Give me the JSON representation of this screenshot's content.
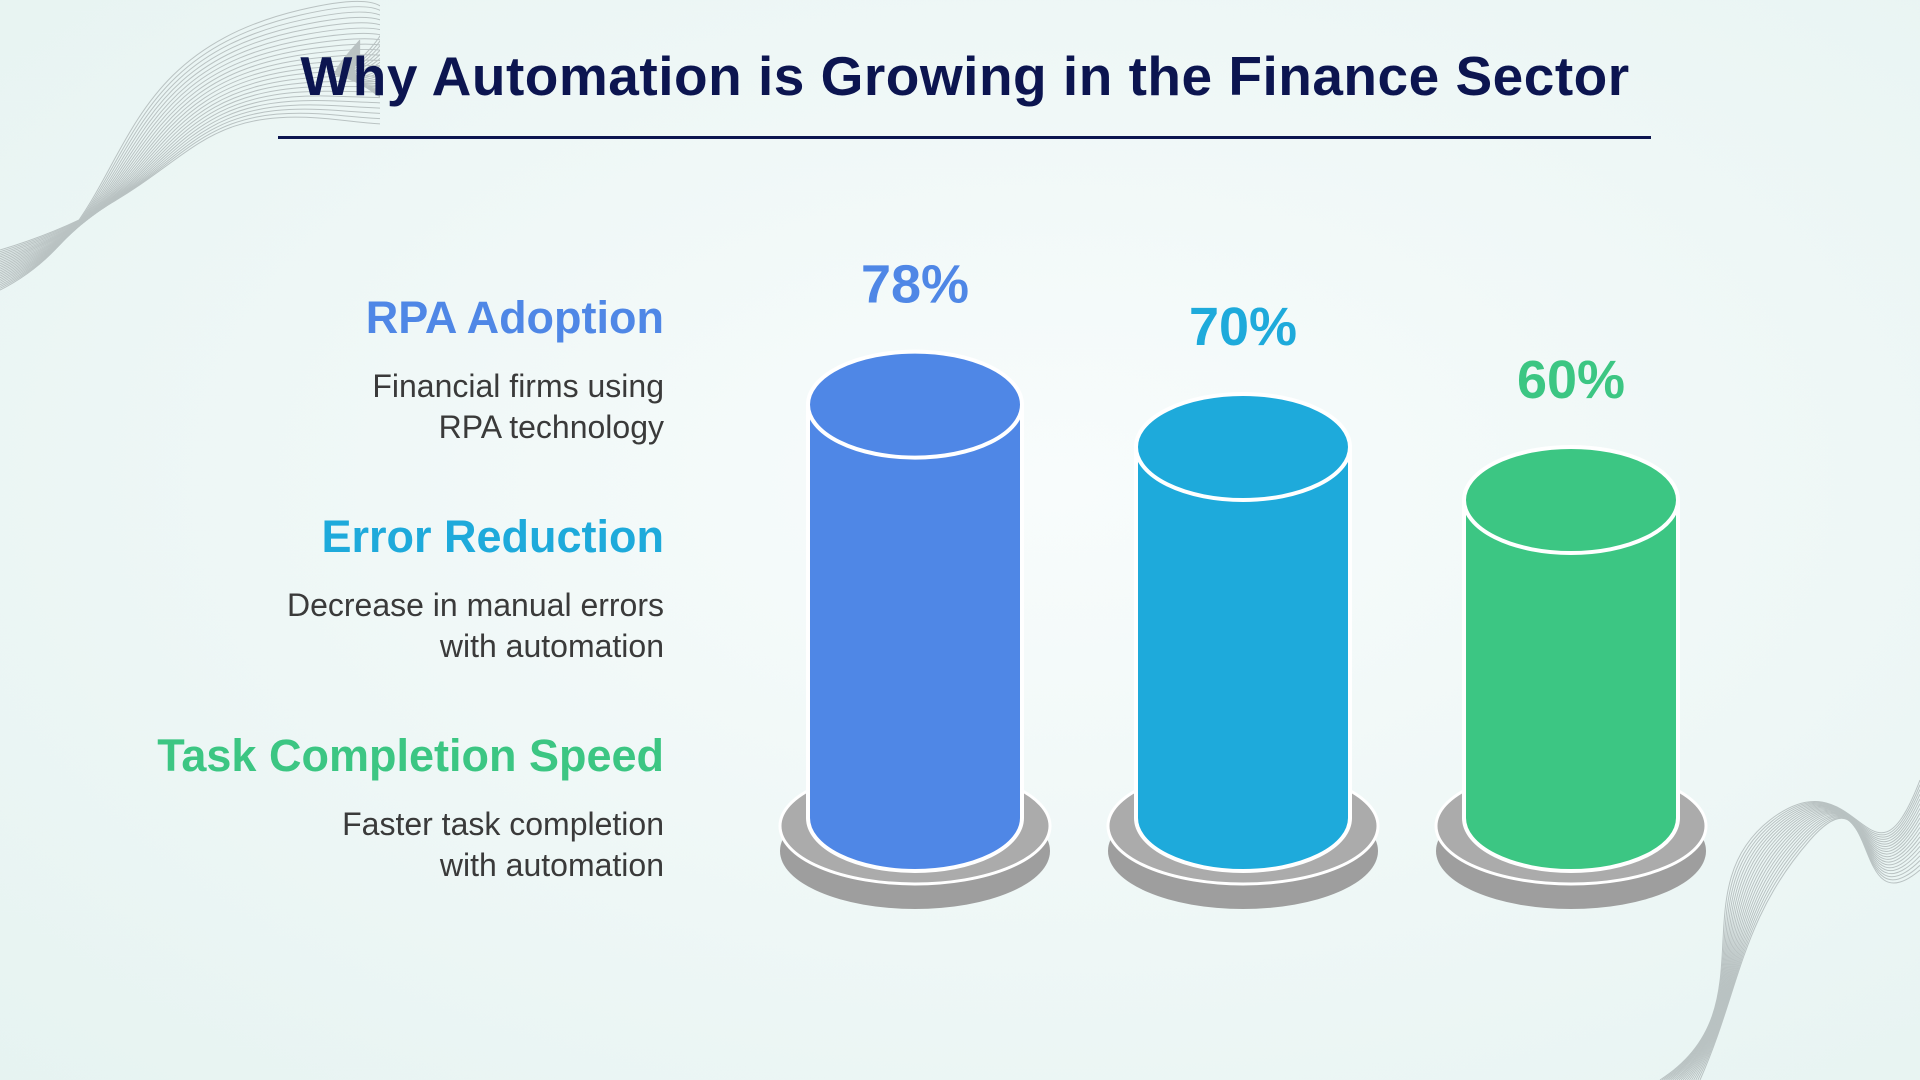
{
  "title": "Why Automation is Growing in the Finance Sector",
  "chart_data": {
    "type": "bar",
    "title": "Why Automation is Growing in the Finance Sector",
    "categories": [
      "RPA Adoption",
      "Error Reduction",
      "Task Completion Speed"
    ],
    "values": [
      78,
      70,
      60
    ],
    "value_labels": [
      "78%",
      "70%",
      "60%"
    ],
    "descriptions": [
      "Financial firms using RPA technology",
      "Decrease in manual errors with automation",
      "Faster task completion with automation"
    ],
    "colors": [
      "#4f87e6",
      "#1eaadb",
      "#3cc683"
    ],
    "legend_position": "left",
    "grid": false
  }
}
